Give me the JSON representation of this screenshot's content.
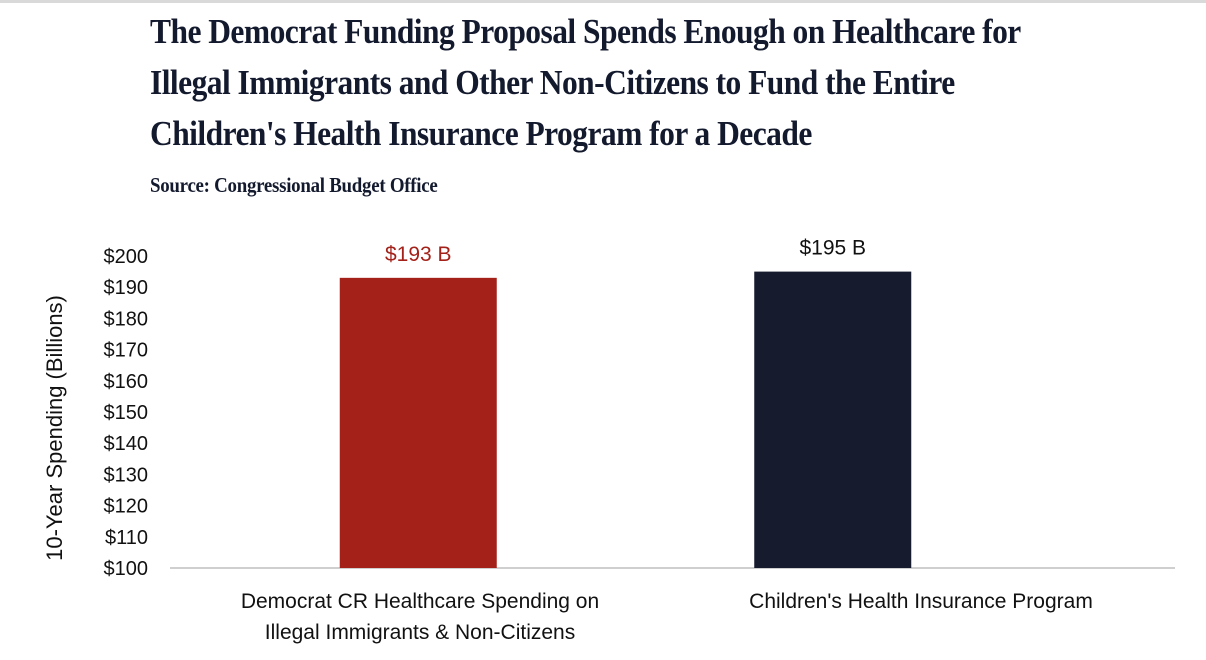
{
  "header": {
    "title": "The Democrat Funding Proposal Spends Enough on Healthcare for Illegal Immigrants and Other Non-Citizens to Fund the Entire Children's Health Insurance Program for a Decade",
    "source": "Source: Congressional Budget Office"
  },
  "chart_data": {
    "type": "bar",
    "title": "The Democrat Funding Proposal Spends Enough on Healthcare for Illegal Immigrants and Other Non-Citizens to Fund the Entire Children's Health Insurance Program for a Decade",
    "subtitle": "Source: Congressional Budget Office",
    "xlabel": "",
    "ylabel": "10-Year Spending (Billions)",
    "ylim": [
      100,
      200
    ],
    "yticks": [
      100,
      110,
      120,
      130,
      140,
      150,
      160,
      170,
      180,
      190,
      200
    ],
    "ytick_labels": [
      "$100",
      "$110",
      "$120",
      "$130",
      "$140",
      "$150",
      "$160",
      "$170",
      "$180",
      "$190",
      "$200"
    ],
    "grid": false,
    "legend": "none",
    "categories": [
      [
        "Democrat CR Healthcare Spending on",
        "Illegal Immigrants & Non-Citizens"
      ],
      [
        "Children's Health Insurance Program"
      ]
    ],
    "values": [
      193,
      195
    ],
    "data_labels": [
      "$193 B",
      "$195  B"
    ],
    "colors": [
      "#a32118",
      "#161b2e"
    ],
    "label_colors": [
      "#a32118",
      "#111111"
    ]
  }
}
